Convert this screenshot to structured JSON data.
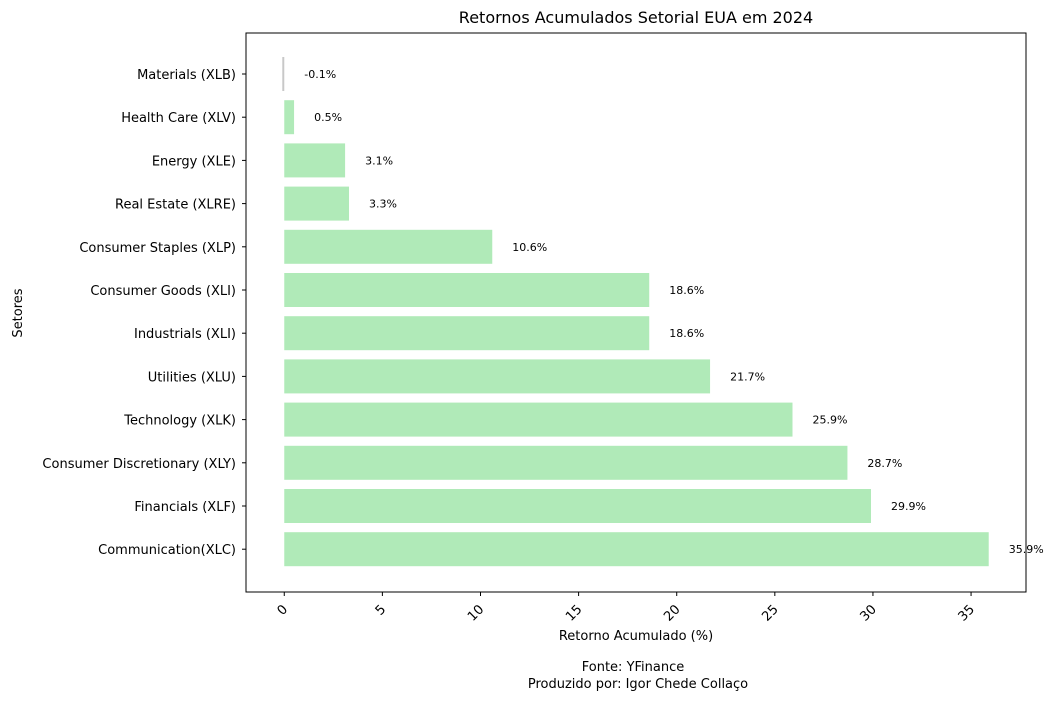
{
  "chart_data": {
    "type": "bar",
    "orientation": "horizontal",
    "title": "Retornos Acumulados Setorial EUA em 2024",
    "xlabel": "Retorno Acumulado (%)",
    "ylabel": "Setores",
    "categories": [
      "Materials (XLB)",
      "Health Care (XLV)",
      "Energy (XLE)",
      "Real Estate (XLRE)",
      "Consumer Staples (XLP)",
      "Consumer Goods (XLI)",
      "Industrials (XLI)",
      "Utilities (XLU)",
      "Technology (XLK)",
      "Consumer Discretionary (XLY)",
      "Financials (XLF)",
      "Communication(XLC)"
    ],
    "values": [
      -0.1,
      0.5,
      3.1,
      3.3,
      10.6,
      18.6,
      18.6,
      21.7,
      25.9,
      28.7,
      29.9,
      35.9
    ],
    "data_labels": [
      "-0.1%",
      "0.5%",
      "3.1%",
      "3.3%",
      "10.6%",
      "18.6%",
      "18.6%",
      "21.7%",
      "25.9%",
      "28.7%",
      "29.9%",
      "35.9%"
    ],
    "xticks": [
      0,
      5,
      10,
      15,
      20,
      25,
      30,
      35
    ],
    "xlim": [
      -1.95,
      37.8
    ],
    "grid": false,
    "legend": false,
    "colors": {
      "positive": "#b0eab8",
      "negative": "#c8c8c8",
      "axis": "#000000"
    }
  },
  "footer": {
    "source": "Fonte: YFinance",
    "author": "Produzido por: Igor Chede Collaço"
  }
}
